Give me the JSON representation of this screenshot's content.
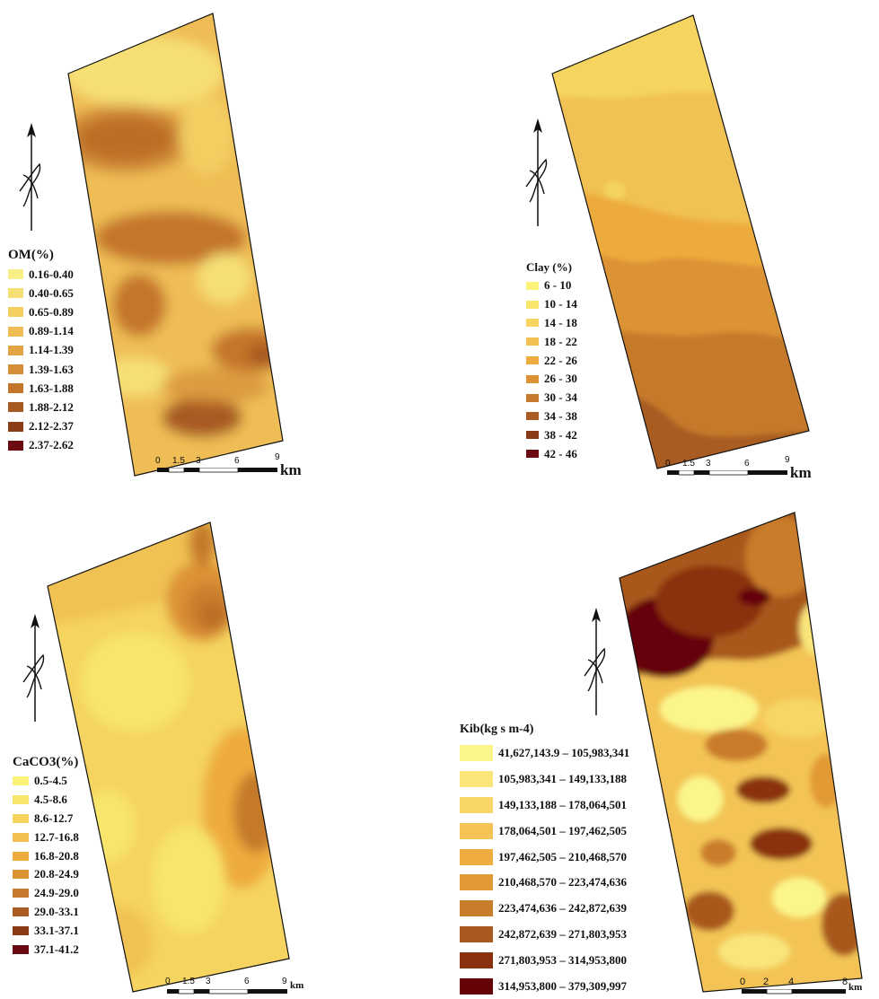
{
  "maps": [
    {
      "id": "om",
      "legend_title": "OM(%)",
      "classes": [
        {
          "label": "0.16-0.40",
          "color": "#f8ef86"
        },
        {
          "label": "0.40-0.65",
          "color": "#f6df74"
        },
        {
          "label": "0.65-0.89",
          "color": "#f3cf62"
        },
        {
          "label": "0.89-1.14",
          "color": "#efbd55"
        },
        {
          "label": "1.14-1.39",
          "color": "#e2a544"
        },
        {
          "label": "1.39-1.63",
          "color": "#d68f38"
        },
        {
          "label": "1.63-1.88",
          "color": "#c4762b"
        },
        {
          "label": "1.88-2.12",
          "color": "#a75a20"
        },
        {
          "label": "2.12-2.37",
          "color": "#8a3d16"
        },
        {
          "label": "2.37-2.62",
          "color": "#6b0a10"
        }
      ],
      "scale": {
        "ticks": [
          "0",
          "1.5",
          "3",
          "6",
          "9"
        ],
        "unit": "km"
      }
    },
    {
      "id": "clay",
      "legend_title": "Clay (%)",
      "classes": [
        {
          "label": "6 - 10",
          "color": "#fbf27a"
        },
        {
          "label": "10 - 14",
          "color": "#f8e56c"
        },
        {
          "label": "14 - 18",
          "color": "#f5d460"
        },
        {
          "label": "18 - 22",
          "color": "#f0c152"
        },
        {
          "label": "22 - 26",
          "color": "#eeab3e"
        },
        {
          "label": "26 - 30",
          "color": "#dc9334"
        },
        {
          "label": "30 - 34",
          "color": "#c57a2c"
        },
        {
          "label": "34 - 38",
          "color": "#a95b22"
        },
        {
          "label": "38 - 42",
          "color": "#8a3a14"
        },
        {
          "label": "42 - 46",
          "color": "#6a0a12"
        }
      ],
      "scale": {
        "ticks": [
          "0",
          "1.5",
          "3",
          "6",
          "9"
        ],
        "unit": "km"
      }
    },
    {
      "id": "caco3",
      "legend_title": "CaCO3(%)",
      "classes": [
        {
          "label": "0.5-4.5",
          "color": "#fbf27a"
        },
        {
          "label": "4.5-8.6",
          "color": "#f8e56c"
        },
        {
          "label": "8.6-12.7",
          "color": "#f5d460"
        },
        {
          "label": "12.7-16.8",
          "color": "#f0c152"
        },
        {
          "label": "16.8-20.8",
          "color": "#eeab3e"
        },
        {
          "label": "20.8-24.9",
          "color": "#dc9334"
        },
        {
          "label": "24.9-29.0",
          "color": "#c57a2c"
        },
        {
          "label": "29.0-33.1",
          "color": "#a95b22"
        },
        {
          "label": "33.1-37.1",
          "color": "#8a3a14"
        },
        {
          "label": "37.1-41.2",
          "color": "#6a0a12"
        }
      ],
      "scale": {
        "ticks": [
          "0",
          "1.5",
          "3",
          "6",
          "9"
        ],
        "unit": "km"
      }
    },
    {
      "id": "kib",
      "legend_title": "Kib(kg s m-4)",
      "classes": [
        {
          "label": "41,627,143.9 – 105,983,341",
          "color": "#fbf68a"
        },
        {
          "label": "105,983,341 – 149,133,188",
          "color": "#f9e57a"
        },
        {
          "label": "149,133,188 – 178,064,501",
          "color": "#f7d566"
        },
        {
          "label": "178,064,501 – 197,462,505",
          "color": "#f3c454"
        },
        {
          "label": "197,462,505 – 210,468,570",
          "color": "#eead3e"
        },
        {
          "label": "210,468,570 – 223,474,636",
          "color": "#e29a36"
        },
        {
          "label": "223,474,636 – 242,872,639",
          "color": "#c97c2c"
        },
        {
          "label": "242,872,639 – 271,803,953",
          "color": "#a9581f"
        },
        {
          "label": "271,803,953 – 314,953,800",
          "color": "#8a3210"
        },
        {
          "label": "314,953,800 – 379,309,997",
          "color": "#650408"
        }
      ],
      "scale": {
        "ticks": [
          "0",
          "2",
          "4",
          "8"
        ],
        "unit": "km"
      }
    }
  ],
  "north_icon": "north-arrow-icon"
}
